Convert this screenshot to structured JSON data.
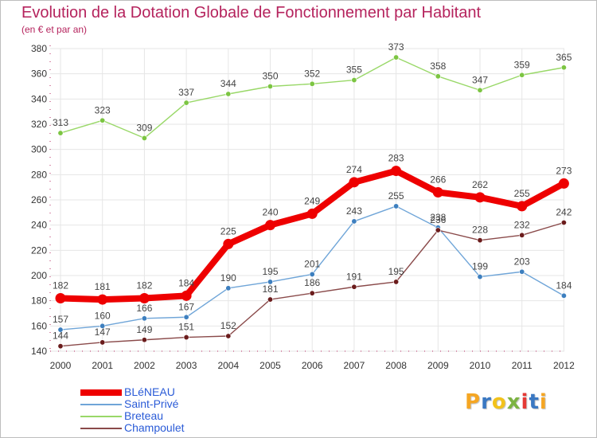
{
  "title": "Evolution de la Dotation Globale de Fonctionnement par Habitant",
  "subtitle": "(en € et par an)",
  "logo": {
    "text": "Proxiti",
    "letter_colors": [
      "#f5a623",
      "#3a78c2",
      "#f2c21b",
      "#7cb342",
      "#e53935",
      "#3a78c2",
      "#f5a623"
    ]
  },
  "colors": {
    "title": "#b5235d",
    "axis": "#b5235d",
    "grid": "#e6e6e6",
    "legend_text": "#2a5bd7"
  },
  "chart_data": {
    "type": "line",
    "title": "Evolution de la Dotation Globale de Fonctionnement par Habitant",
    "subtitle": "(en € et par an)",
    "xlabel": "",
    "ylabel": "",
    "x": [
      "2000",
      "2001",
      "2002",
      "2003",
      "2004",
      "2005",
      "2006",
      "2007",
      "2008",
      "2009",
      "2010",
      "2011",
      "2012"
    ],
    "ylim": [
      140,
      380
    ],
    "yticks": [
      140,
      160,
      180,
      200,
      220,
      240,
      260,
      280,
      300,
      320,
      340,
      360,
      380
    ],
    "grid": true,
    "legend_position": "bottom-left",
    "series": [
      {
        "name": "BLéNEAU",
        "values": [
          182,
          181,
          182,
          184,
          225,
          240,
          249,
          274,
          283,
          266,
          262,
          255,
          273
        ],
        "labels": [
          "182",
          "181",
          "182",
          "184",
          "225",
          "240",
          "249",
          "274",
          "283",
          "266",
          "262",
          "255",
          "273"
        ],
        "color": "#ee0000",
        "marker_color": "#ee0000",
        "emphasis": "thick"
      },
      {
        "name": "Saint-Privé",
        "values": [
          157,
          160,
          166,
          167,
          190,
          195,
          201,
          243,
          255,
          238,
          199,
          203,
          184
        ],
        "labels": [
          "157",
          "160",
          "166",
          "167",
          "190",
          "195",
          "201",
          "243",
          "255",
          "238",
          "199",
          "203",
          "184"
        ],
        "color": "#6fa5d8",
        "marker_color": "#3d7fbf",
        "emphasis": "normal"
      },
      {
        "name": "Breteau",
        "values": [
          313,
          323,
          309,
          337,
          344,
          350,
          352,
          355,
          373,
          358,
          347,
          359,
          365
        ],
        "labels": [
          "313",
          "323",
          "309",
          "337",
          "344",
          "350",
          "352",
          "355",
          "373",
          "358",
          "347",
          "359",
          "365"
        ],
        "color": "#99d868",
        "marker_color": "#7cc542",
        "emphasis": "normal"
      },
      {
        "name": "Champoulet",
        "values": [
          144,
          147,
          149,
          151,
          152,
          181,
          186,
          191,
          195,
          236,
          228,
          232,
          242
        ],
        "labels": [
          "144",
          "147",
          "149",
          "151",
          "152",
          "181",
          "186",
          "191",
          "195",
          "236",
          "228",
          "232",
          "242"
        ],
        "color": "#8a4a4a",
        "marker_color": "#6b1c1c",
        "emphasis": "normal"
      }
    ]
  }
}
